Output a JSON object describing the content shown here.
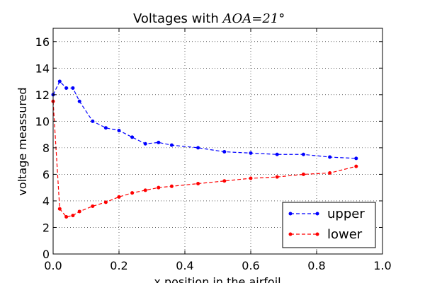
{
  "chart_data": {
    "type": "line",
    "title": "Voltages with ",
    "title_math": "AOA=21°",
    "xlabel": "x position in the airfoil",
    "ylabel": "voltage meassured",
    "xlim": [
      0.0,
      1.0
    ],
    "ylim": [
      0,
      17
    ],
    "xticks": [
      "0.0",
      "0.2",
      "0.4",
      "0.6",
      "0.8",
      "1.0"
    ],
    "yticks": [
      "0",
      "2",
      "4",
      "6",
      "8",
      "10",
      "12",
      "14",
      "16"
    ],
    "grid": true,
    "legend_position": "bottom-right",
    "series": [
      {
        "name": "upper",
        "color": "#0000ff",
        "x": [
          0.0,
          0.02,
          0.04,
          0.06,
          0.08,
          0.12,
          0.16,
          0.2,
          0.24,
          0.28,
          0.32,
          0.36,
          0.44,
          0.52,
          0.6,
          0.68,
          0.76,
          0.84,
          0.92
        ],
        "y": [
          12.0,
          13.0,
          12.5,
          12.5,
          11.5,
          10.0,
          9.5,
          9.3,
          8.8,
          8.3,
          8.4,
          8.2,
          8.0,
          7.7,
          7.6,
          7.5,
          7.5,
          7.3,
          7.2
        ]
      },
      {
        "name": "lower",
        "color": "#ff0000",
        "x": [
          0.0,
          0.02,
          0.04,
          0.06,
          0.08,
          0.12,
          0.16,
          0.2,
          0.24,
          0.28,
          0.32,
          0.36,
          0.44,
          0.52,
          0.6,
          0.68,
          0.76,
          0.84,
          0.92
        ],
        "y": [
          11.5,
          3.4,
          2.8,
          2.9,
          3.2,
          3.6,
          3.9,
          4.3,
          4.6,
          4.8,
          5.0,
          5.1,
          5.3,
          5.5,
          5.7,
          5.8,
          6.0,
          6.1,
          6.6
        ]
      }
    ]
  }
}
